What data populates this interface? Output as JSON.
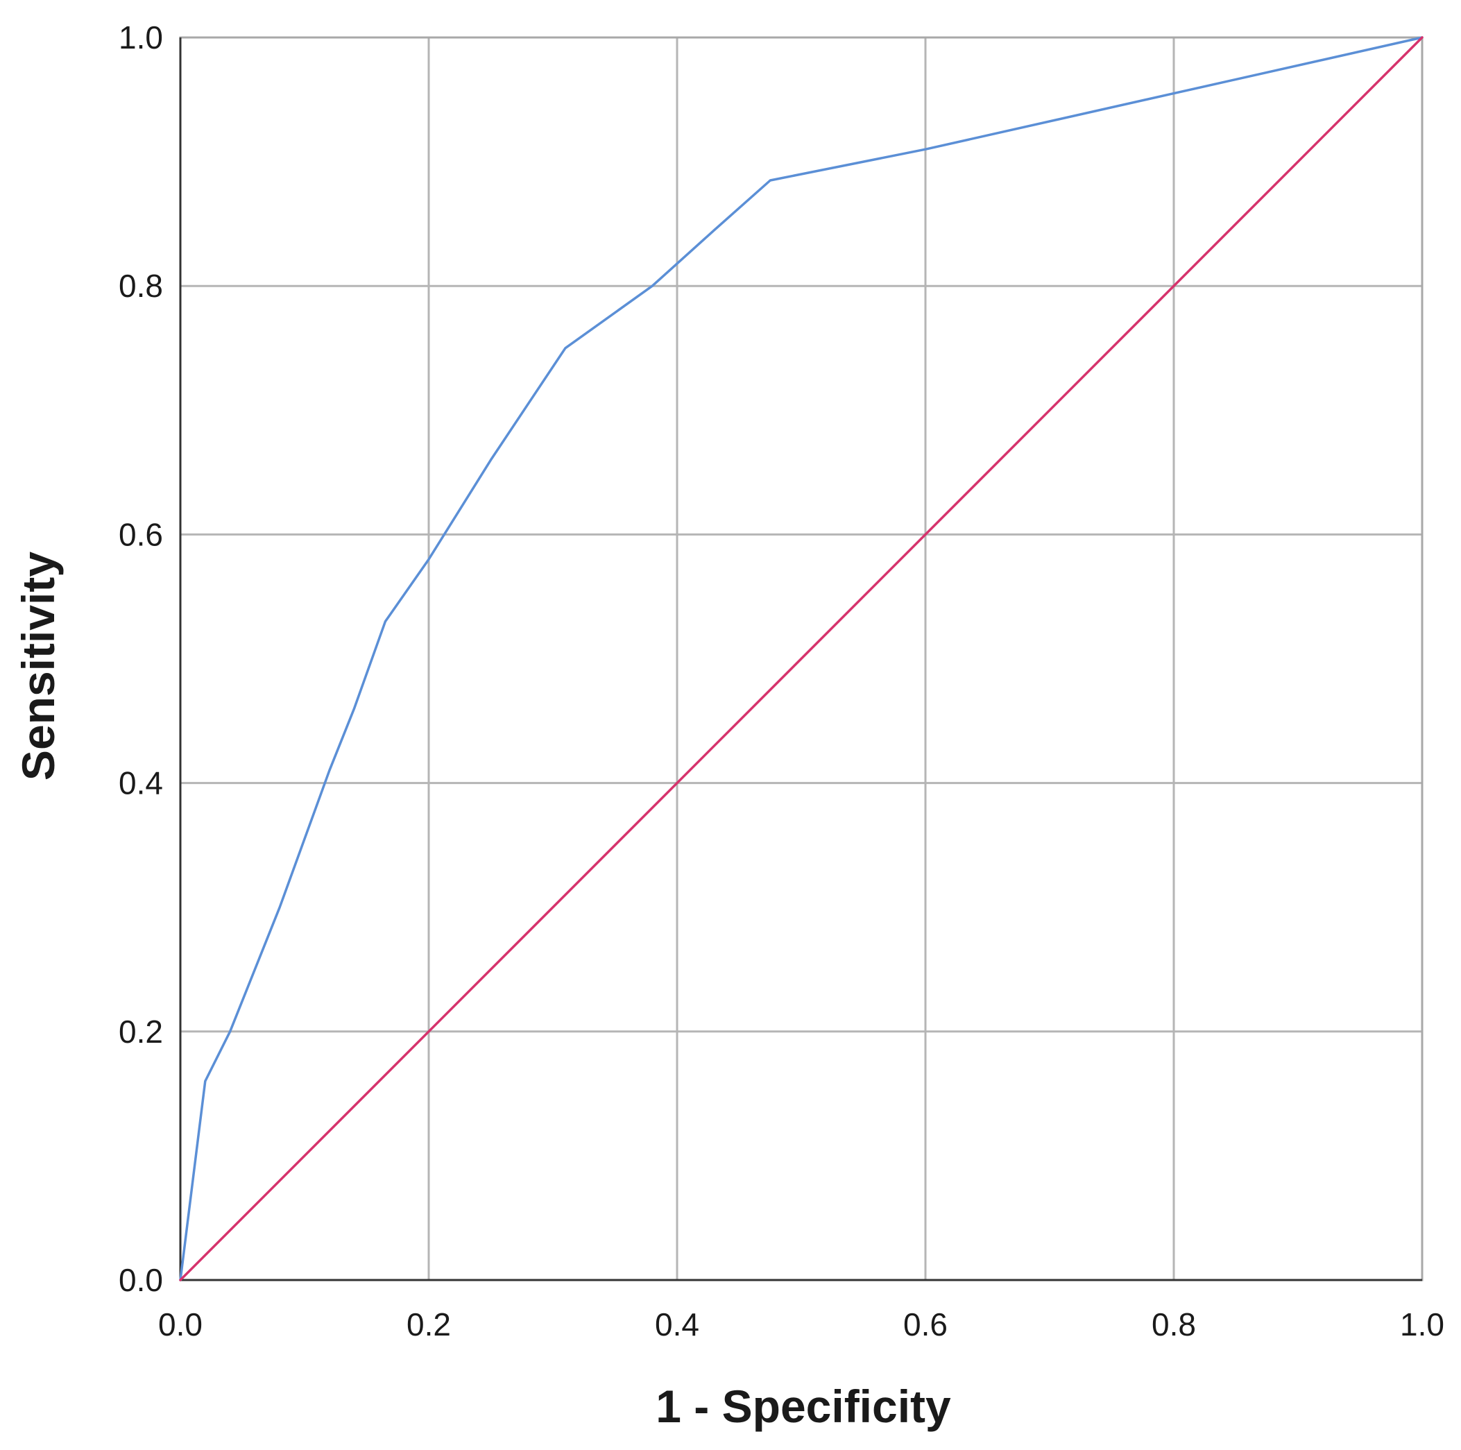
{
  "chart_data": {
    "type": "line",
    "title": "",
    "xlabel": "1 - Specificity",
    "ylabel": "Sensitivity",
    "xlim": [
      0,
      1
    ],
    "ylim": [
      0,
      1
    ],
    "x_ticks": [
      "0.0",
      "0.2",
      "0.4",
      "0.6",
      "0.8",
      "1.0"
    ],
    "y_ticks": [
      "0.0",
      "0.2",
      "0.4",
      "0.6",
      "0.8",
      "1.0"
    ],
    "grid": true,
    "legend": "none",
    "series": [
      {
        "color": "#5b8fd6",
        "x": [
          0,
          0.02,
          0.04,
          0.08,
          0.12,
          0.14,
          0.165,
          0.2,
          0.25,
          0.31,
          0.38,
          0.43,
          0.475,
          0.6,
          0.8,
          1.0
        ],
        "y": [
          0,
          0.16,
          0.2,
          0.3,
          0.41,
          0.46,
          0.53,
          0.58,
          0.66,
          0.75,
          0.8,
          0.845,
          0.885,
          0.91,
          0.955,
          1.0
        ]
      },
      {
        "color": "#d6336c",
        "x": [
          0,
          1
        ],
        "y": [
          0,
          1
        ]
      }
    ]
  }
}
